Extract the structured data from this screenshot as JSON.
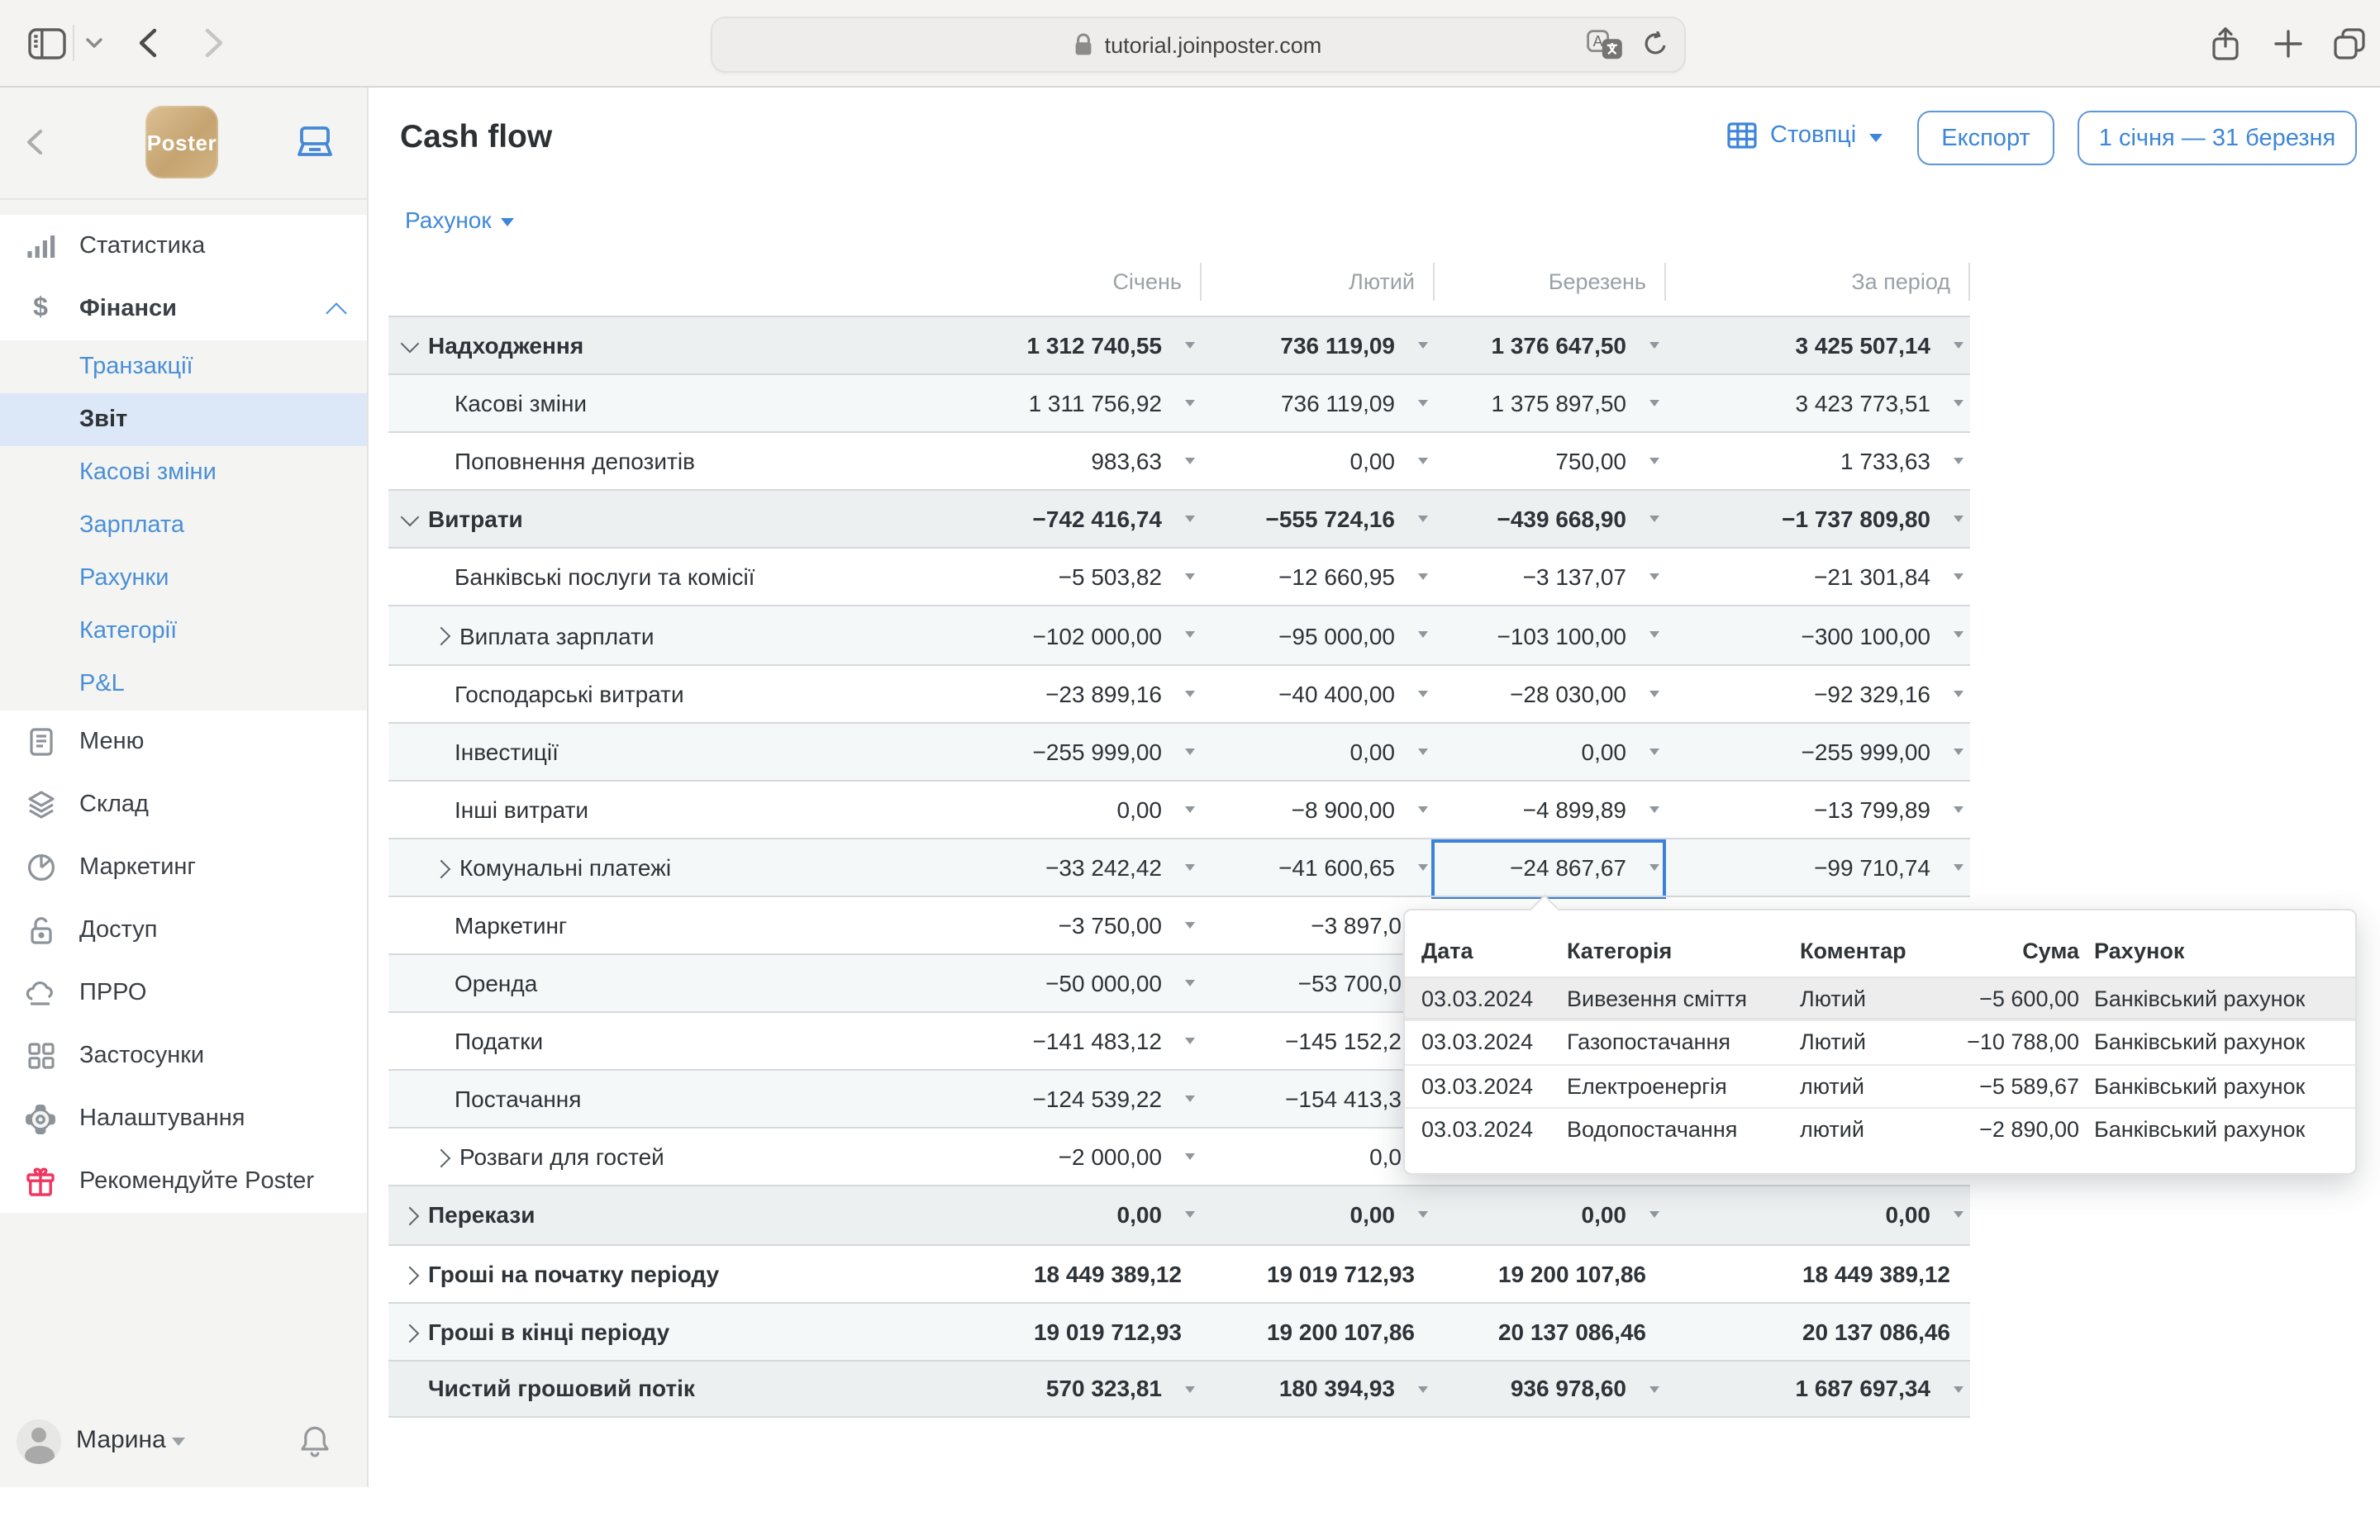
{
  "browser": {
    "url": "tutorial.joinposter.com",
    "icons": [
      "sidebar-toggle",
      "window-chevron",
      "back",
      "forward",
      "lock",
      "translate",
      "reload",
      "share",
      "new-tab",
      "tab-overview"
    ]
  },
  "sidebar": {
    "logo": "Poster",
    "pos_icon": "pos-terminal",
    "items": [
      {
        "label": "Статистика",
        "icon": "bar-chart",
        "kind": "main"
      },
      {
        "label": "Фінанси",
        "icon": "dollar",
        "kind": "main",
        "bold": true,
        "expanded": true
      },
      {
        "label": "Транзакції",
        "kind": "sub"
      },
      {
        "label": "Звіт",
        "kind": "sub",
        "selected": true
      },
      {
        "label": "Касові зміни",
        "kind": "sub"
      },
      {
        "label": "Зарплата",
        "kind": "sub"
      },
      {
        "label": "Рахунки",
        "kind": "sub"
      },
      {
        "label": "Категорії",
        "kind": "sub"
      },
      {
        "label": "P&L",
        "kind": "sub"
      },
      {
        "label": "Меню",
        "icon": "menu",
        "kind": "main"
      },
      {
        "label": "Склад",
        "icon": "layers",
        "kind": "main"
      },
      {
        "label": "Маркетинг",
        "icon": "pie",
        "kind": "main"
      },
      {
        "label": "Доступ",
        "icon": "lock-open",
        "kind": "main"
      },
      {
        "label": "ПРРО",
        "icon": "cloud",
        "kind": "main"
      },
      {
        "label": "Застосунки",
        "icon": "apps",
        "kind": "main"
      },
      {
        "label": "Налаштування",
        "icon": "gear",
        "kind": "main"
      },
      {
        "label": "Рекомендуйте Poster",
        "icon": "gift",
        "kind": "main",
        "accent": "#f03560"
      }
    ],
    "user": {
      "name": "Марина"
    }
  },
  "header": {
    "title": "Cash flow",
    "columns_button": "Стовпці",
    "export_button": "Експорт",
    "date_range": "1 січня — 31 березня"
  },
  "filter": {
    "account_label": "Рахунок"
  },
  "colors": {
    "accent": "#3e86d8",
    "selected_cell_border": "#3b82d8",
    "group_row_bg": "#edf0f1",
    "fab": "#2f82ec",
    "gift": "#f03560"
  },
  "table": {
    "columns": [
      "Січень",
      "Лютий",
      "Березень",
      "За період"
    ],
    "rows": [
      {
        "label": "Надходження",
        "type": "group",
        "chevron": "down",
        "values": [
          "1 312 740,55",
          "736 119,09",
          "1 376 647,50",
          "3 425 507,14"
        ],
        "carets": true
      },
      {
        "label": "Касові зміни",
        "type": "sub",
        "chevron": "none",
        "values": [
          "1 311 756,92",
          "736 119,09",
          "1 375 897,50",
          "3 423 773,51"
        ],
        "carets": true
      },
      {
        "label": "Поповнення депозитів",
        "type": "sub",
        "chevron": "none",
        "values": [
          "983,63",
          "0,00",
          "750,00",
          "1 733,63"
        ],
        "carets": true
      },
      {
        "label": "Витрати",
        "type": "group",
        "chevron": "down",
        "values": [
          "−742 416,74",
          "−555 724,16",
          "−439 668,90",
          "−1 737 809,80"
        ],
        "carets": true
      },
      {
        "label": "Банківські послуги та комісії",
        "type": "sub",
        "chevron": "none",
        "values": [
          "−5 503,82",
          "−12 660,95",
          "−3 137,07",
          "−21 301,84"
        ],
        "carets": true
      },
      {
        "label": "Виплата зарплати",
        "type": "sub",
        "chevron": "right",
        "values": [
          "−102 000,00",
          "−95 000,00",
          "−103 100,00",
          "−300 100,00"
        ],
        "carets": true
      },
      {
        "label": "Господарські витрати",
        "type": "sub",
        "chevron": "none",
        "values": [
          "−23 899,16",
          "−40 400,00",
          "−28 030,00",
          "−92 329,16"
        ],
        "carets": true
      },
      {
        "label": "Інвестиції",
        "type": "sub",
        "chevron": "none",
        "values": [
          "−255 999,00",
          "0,00",
          "0,00",
          "−255 999,00"
        ],
        "carets": true
      },
      {
        "label": "Інші витрати",
        "type": "sub",
        "chevron": "none",
        "values": [
          "0,00",
          "−8 900,00",
          "−4 899,89",
          "−13 799,89"
        ],
        "carets": true
      },
      {
        "label": "Комунальні платежі",
        "type": "sub",
        "chevron": "right",
        "values": [
          "−33 242,42",
          "−41 600,65",
          "−24 867,67",
          "−99 710,74"
        ],
        "carets": true,
        "selected_col": 2
      },
      {
        "label": "Маркетинг",
        "type": "sub",
        "chevron": "none",
        "values": [
          "−3 750,00",
          "−3 897,0",
          "",
          ""
        ],
        "carets": true,
        "partial_col": 1
      },
      {
        "label": "Оренда",
        "type": "sub",
        "chevron": "none",
        "values": [
          "−50 000,00",
          "−53 700,0",
          "",
          ""
        ],
        "carets": true,
        "partial_col": 1
      },
      {
        "label": "Податки",
        "type": "sub",
        "chevron": "none",
        "values": [
          "−141 483,12",
          "−145 152,2",
          "",
          ""
        ],
        "carets": true,
        "partial_col": 1
      },
      {
        "label": "Постачання",
        "type": "sub",
        "chevron": "none",
        "values": [
          "−124 539,22",
          "−154 413,3",
          "",
          ""
        ],
        "carets": true,
        "partial_col": 1
      },
      {
        "label": "Розваги для гостей",
        "type": "sub",
        "chevron": "right",
        "values": [
          "−2 000,00",
          "0,0",
          "",
          ""
        ],
        "carets": true,
        "partial_col": 1
      },
      {
        "label": "Перекази",
        "type": "group",
        "chevron": "right",
        "values": [
          "0,00",
          "0,00",
          "0,00",
          "0,00"
        ],
        "carets": true
      },
      {
        "label": "Гроші на початку періоду",
        "type": "bold",
        "chevron": "right",
        "values": [
          "18 449 389,12",
          "19 019 712,93",
          "19 200 107,86",
          "18 449 389,12"
        ],
        "carets": false
      },
      {
        "label": "Гроші в кінці періоду",
        "type": "bold",
        "chevron": "right",
        "values": [
          "19 019 712,93",
          "19 200 107,86",
          "20 137 086,46",
          "20 137 086,46"
        ],
        "carets": false
      },
      {
        "label": "Чистий грошовий потік",
        "type": "total",
        "chevron": "none",
        "values": [
          "570 323,81",
          "180 394,93",
          "936 978,60",
          "1 687 697,34"
        ],
        "carets": true
      }
    ]
  },
  "popup": {
    "columns": [
      "Дата",
      "Категорія",
      "Коментар",
      "Сума",
      "Рахунок"
    ],
    "rows": [
      {
        "date": "03.03.2024",
        "category": "Вивезення сміття",
        "comment": "Лютий",
        "amount": "−5 600,00",
        "account": "Банківський рахунок",
        "highlighted": true
      },
      {
        "date": "03.03.2024",
        "category": "Газопостачання",
        "comment": "Лютий",
        "amount": "−10 788,00",
        "account": "Банківський рахунок",
        "highlighted": false
      },
      {
        "date": "03.03.2024",
        "category": "Електроенергія",
        "comment": "лютий",
        "amount": "−5 589,67",
        "account": "Банківський рахунок",
        "highlighted": false
      },
      {
        "date": "03.03.2024",
        "category": "Водопостачання",
        "comment": "лютий",
        "amount": "−2 890,00",
        "account": "Банківський рахунок",
        "highlighted": false
      }
    ]
  }
}
